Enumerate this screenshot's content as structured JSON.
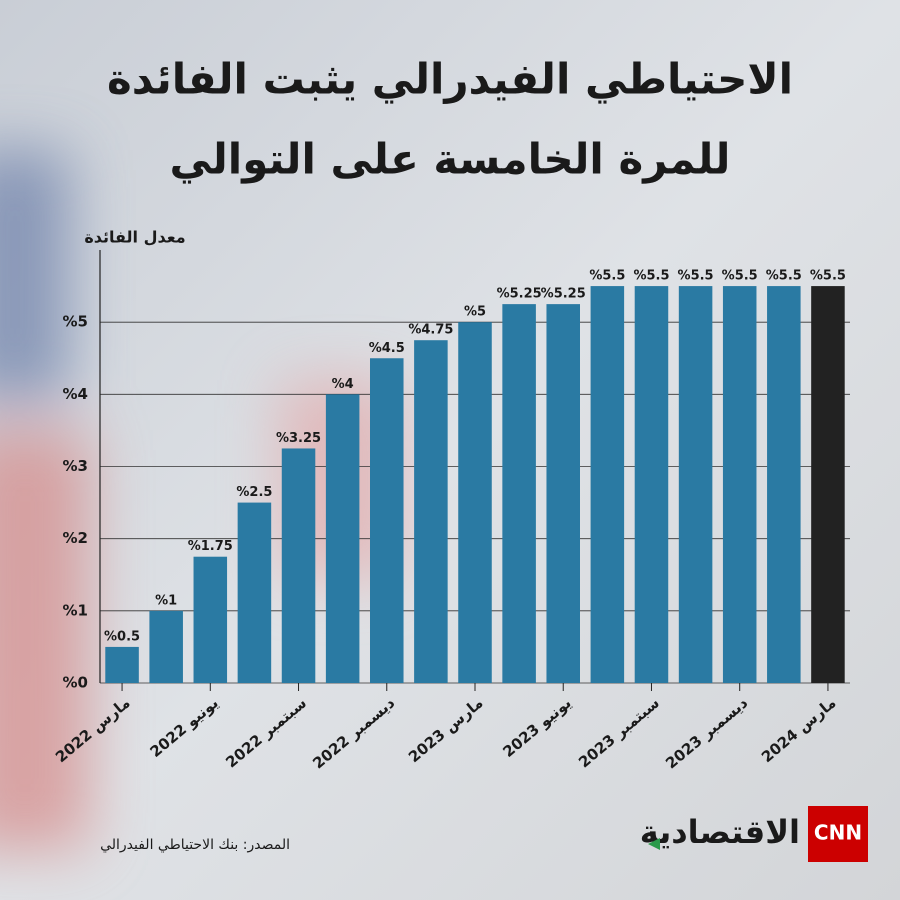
{
  "chart_data": {
    "type": "bar",
    "title": [
      "الاحتياطي الفيدرالي يثبت الفائدة",
      "للمرة الخامسة على التوالي"
    ],
    "y_label": "معدل الفائدة",
    "categories": [
      "مارس 2022",
      null,
      "يونيو 2022",
      null,
      "سبتمبر 2022",
      null,
      "ديسمبر 2022",
      null,
      "مارس 2023",
      null,
      "يونيو 2023",
      null,
      "سبتمبر 2023",
      null,
      "ديسمبر 2023",
      null,
      "مارس 2024"
    ],
    "values": [
      0.5,
      1,
      1.75,
      2.5,
      3.25,
      4,
      4.5,
      4.75,
      5,
      5.25,
      5.25,
      5.5,
      5.5,
      5.5,
      5.5,
      5.5,
      5.5
    ],
    "value_labels": [
      "%0.5",
      "%1",
      "%1.75",
      "%2.5",
      "%3.25",
      "%4",
      "%4.5",
      "%4.75",
      "%5",
      "%5.25",
      "%5.25",
      "%5.5",
      "%5.5",
      "%5.5",
      "%5.5",
      "%5.5",
      "%5.5"
    ],
    "colors": [
      "#2a7aa3",
      "#2a7aa3",
      "#2a7aa3",
      "#2a7aa3",
      "#2a7aa3",
      "#2a7aa3",
      "#2a7aa3",
      "#2a7aa3",
      "#2a7aa3",
      "#2a7aa3",
      "#2a7aa3",
      "#2a7aa3",
      "#2a7aa3",
      "#2a7aa3",
      "#2a7aa3",
      "#2a7aa3",
      "#222222"
    ],
    "ylim": [
      0,
      6
    ],
    "yticks": [
      {
        "value": 0,
        "label": "%0"
      },
      {
        "value": 1,
        "label": "%1"
      },
      {
        "value": 2,
        "label": "%2"
      },
      {
        "value": 3,
        "label": "%3"
      },
      {
        "value": 4,
        "label": "%4"
      },
      {
        "value": 5,
        "label": "%5"
      }
    ],
    "grid": true,
    "source": "المصدر: بنك الاحتياطي الفيدرالي",
    "logo": {
      "brand": "CNN",
      "name": "الاقتصادية"
    }
  }
}
